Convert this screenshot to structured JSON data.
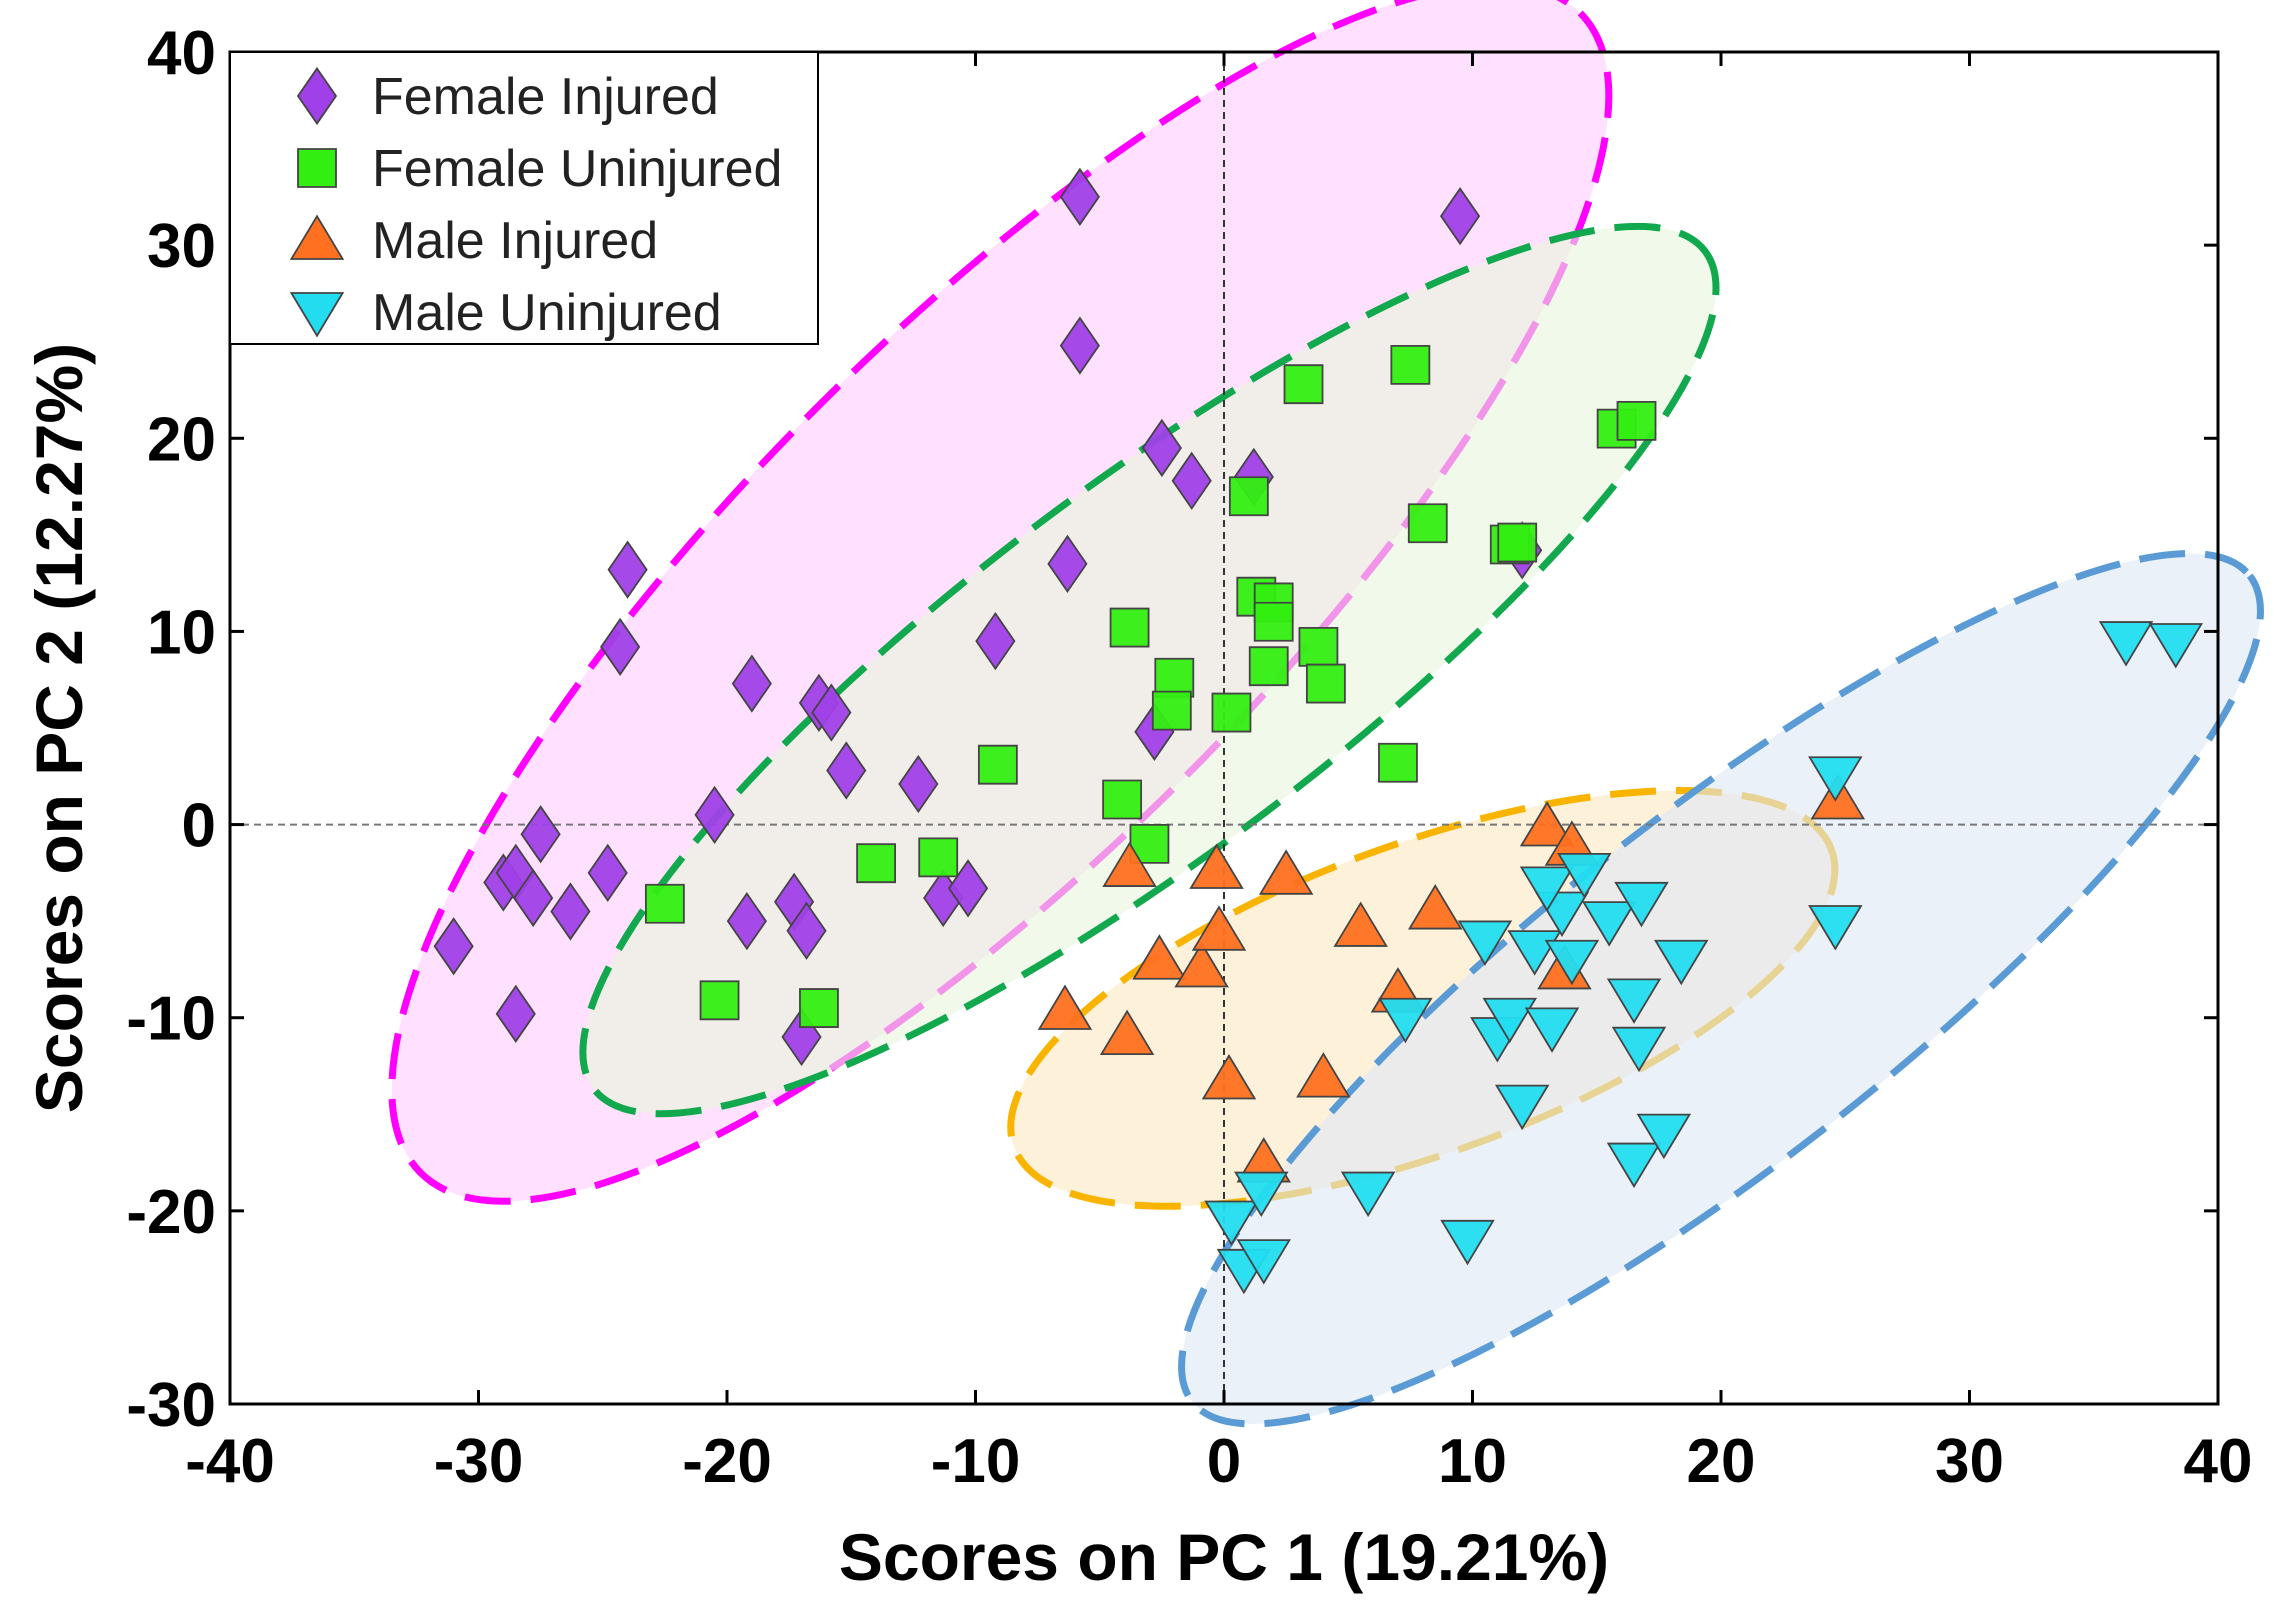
{
  "chart_data": {
    "type": "scatter",
    "title": "",
    "xlabel": "Scores on PC 1 (19.21%)",
    "ylabel": "Scores on PC 2 (12.27%)",
    "xlim": [
      -40,
      40
    ],
    "ylim": [
      -30,
      40
    ],
    "xticks": [
      -40,
      -30,
      -20,
      -10,
      0,
      10,
      20,
      30,
      40
    ],
    "yticks": [
      -30,
      -20,
      -10,
      0,
      10,
      20,
      30,
      40
    ],
    "xtick_labels": [
      "-40",
      "-30",
      "-20",
      "-10",
      "0",
      "10",
      "20",
      "30",
      "40"
    ],
    "ytick_labels": [
      "-30",
      "-20",
      "-10",
      "0",
      "10",
      "20",
      "30",
      "40"
    ],
    "grid": false,
    "reference_lines": {
      "x": 0,
      "y": 0,
      "style": "dashed"
    },
    "legend_position": "top-left",
    "series": [
      {
        "name": "Female Injured",
        "marker": "diamond",
        "color": "#a040e8",
        "points": [
          [
            -31,
            -6.3
          ],
          [
            -29,
            -3
          ],
          [
            -28.5,
            -2.5
          ],
          [
            -27.5,
            -0.5
          ],
          [
            -27.8,
            -3.8
          ],
          [
            -26.3,
            -4.5
          ],
          [
            -24.8,
            -2.5
          ],
          [
            -28.5,
            -9.8
          ],
          [
            -24,
            13.2
          ],
          [
            -24.3,
            9.2
          ],
          [
            -19,
            7.3
          ],
          [
            -20.5,
            0.5
          ],
          [
            -19.2,
            -5
          ],
          [
            -17.3,
            -4
          ],
          [
            -16.8,
            -5.5
          ],
          [
            -17,
            -11
          ],
          [
            -16.3,
            6.3
          ],
          [
            -15.8,
            5.8
          ],
          [
            -15.2,
            2.8
          ],
          [
            -12.3,
            2.1
          ],
          [
            -11.3,
            -3.8
          ],
          [
            -10.3,
            -3.3
          ],
          [
            -9.2,
            9.5
          ],
          [
            -6.3,
            13.5
          ],
          [
            -5.8,
            32.5
          ],
          [
            -5.8,
            24.8
          ],
          [
            -2.5,
            19.5
          ],
          [
            -1.3,
            17.8
          ],
          [
            -2.8,
            4.8
          ],
          [
            1.2,
            18
          ],
          [
            12,
            14.2
          ],
          [
            9.5,
            31.5
          ]
        ]
      },
      {
        "name": "Female Uninjured",
        "marker": "square",
        "color": "#33ee11",
        "points": [
          [
            -22.5,
            -4.1
          ],
          [
            -20.3,
            -9.1
          ],
          [
            -16.3,
            -9.5
          ],
          [
            -14,
            -2
          ],
          [
            -11.5,
            -1.7
          ],
          [
            -9.1,
            3.1
          ],
          [
            -4.1,
            1.3
          ],
          [
            -3,
            -1
          ],
          [
            -3.8,
            10.2
          ],
          [
            -2,
            7.6
          ],
          [
            -2.1,
            5.9
          ],
          [
            0.3,
            5.8
          ],
          [
            1,
            17
          ],
          [
            1.3,
            11.8
          ],
          [
            2,
            11.5
          ],
          [
            2,
            10.5
          ],
          [
            1.8,
            8.2
          ],
          [
            3.2,
            22.8
          ],
          [
            3.8,
            9.2
          ],
          [
            4.1,
            7.3
          ],
          [
            7,
            3.2
          ],
          [
            7.5,
            23.8
          ],
          [
            8.2,
            15.6
          ],
          [
            11.5,
            14.5
          ],
          [
            11.8,
            14.6
          ],
          [
            15.8,
            20.5
          ],
          [
            16.6,
            20.9
          ]
        ]
      },
      {
        "name": "Male Injured",
        "marker": "triangle-up",
        "color": "#ff7020",
        "points": [
          [
            -6.4,
            -9.6
          ],
          [
            -3.8,
            -2.2
          ],
          [
            -3.9,
            -10.9
          ],
          [
            -2.6,
            -7
          ],
          [
            -0.9,
            -7.4
          ],
          [
            -0.3,
            -2.3
          ],
          [
            -0.2,
            -5.5
          ],
          [
            0.2,
            -13.2
          ],
          [
            1.6,
            -17.5
          ],
          [
            2.5,
            -2.6
          ],
          [
            5.5,
            -5.3
          ],
          [
            4,
            -13.1
          ],
          [
            7,
            -8.7
          ],
          [
            8.5,
            -4.4
          ],
          [
            13,
            -0.1
          ],
          [
            14,
            -1.1
          ],
          [
            13.7,
            -7.5
          ],
          [
            24.7,
            1.3
          ]
        ]
      },
      {
        "name": "Male Uninjured",
        "marker": "triangle-down",
        "color": "#22ddf0",
        "points": [
          [
            0.3,
            -20.5
          ],
          [
            0.8,
            -23
          ],
          [
            1.6,
            -22.5
          ],
          [
            1.5,
            -19
          ],
          [
            5.8,
            -19
          ],
          [
            7.3,
            -10
          ],
          [
            9.8,
            -21.5
          ],
          [
            10.5,
            -6
          ],
          [
            11,
            -11
          ],
          [
            11.5,
            -10
          ],
          [
            12,
            -14.5
          ],
          [
            12.5,
            -6.5
          ],
          [
            13.2,
            -10.5
          ],
          [
            13.6,
            -4.5
          ],
          [
            13,
            -3.2
          ],
          [
            14.5,
            -2.5
          ],
          [
            14,
            -7
          ],
          [
            15.5,
            -5
          ],
          [
            16.8,
            -4
          ],
          [
            16.5,
            -9
          ],
          [
            16.7,
            -11.5
          ],
          [
            16.5,
            -17.5
          ],
          [
            17.7,
            -16
          ],
          [
            18.4,
            -7
          ],
          [
            24.6,
            2.5
          ],
          [
            24.6,
            -5.2
          ],
          [
            36.3,
            9.5
          ],
          [
            38.3,
            9.4
          ]
        ]
      }
    ],
    "ellipses": [
      {
        "group": "Female Injured",
        "center": [
          -9,
          12
        ],
        "semi_axes": [
          33,
          13.5
        ],
        "angle_deg": 45,
        "fill": "#ffccff",
        "stroke": "#ff00ff"
      },
      {
        "group": "Female Uninjured",
        "center": [
          -3,
          8
        ],
        "semi_axes": [
          28,
          9.5
        ],
        "angle_deg": 37,
        "fill": "#e8f7dc",
        "stroke": "#12a84e"
      },
      {
        "group": "Male Injured",
        "center": [
          8,
          -9
        ],
        "semi_axes": [
          17.5,
          8
        ],
        "angle_deg": 20,
        "fill": "#fde8c0",
        "stroke": "#f8b400"
      },
      {
        "group": "Male Uninjured",
        "center": [
          20,
          -8.5
        ],
        "semi_axes": [
          27,
          9
        ],
        "angle_deg": 38,
        "fill": "#dce8f5",
        "stroke": "#5b9bd5"
      }
    ]
  }
}
